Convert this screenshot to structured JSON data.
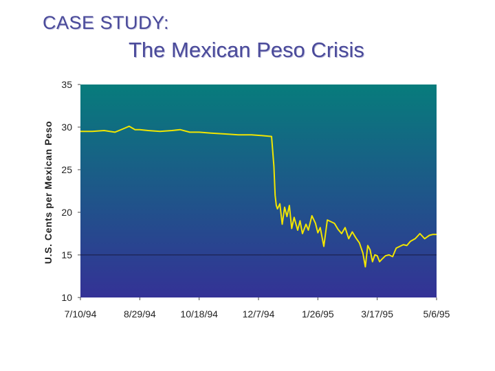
{
  "slide": {
    "title_small": "CASE STUDY:",
    "title_main": "The Mexican Peso Crisis"
  },
  "chart_data": {
    "type": "line",
    "title": "The Mexican Peso Crisis",
    "xlabel": "",
    "ylabel": "U.S. Cents per Mexican Peso",
    "ylim": [
      10,
      35
    ],
    "yticks": [
      "10",
      "15",
      "20",
      "25",
      "30",
      "35"
    ],
    "xlim": [
      "1994-07-10",
      "1995-05-06"
    ],
    "xticks": [
      "7/10/94",
      "8/29/94",
      "10/18/94",
      "12/7/94",
      "1/26/95",
      "3/17/95",
      "5/6/95"
    ],
    "reference_line_y": 15,
    "background": "gradient teal (top) to indigo (bottom)",
    "colors": {
      "line": "#f2e600",
      "bg_top": "#077c7c",
      "bg_bottom": "#343296",
      "ref_line": "#1a1a40"
    },
    "series": [
      {
        "x": [
          "1994-07-10",
          "1994-07-20",
          "1994-07-30",
          "1994-08-08",
          "1994-08-15",
          "1994-08-20",
          "1994-08-25",
          "1994-08-29",
          "1994-09-05",
          "1994-09-15",
          "1994-09-25",
          "1994-10-02",
          "1994-10-10",
          "1994-10-18",
          "1994-10-28",
          "1994-11-08",
          "1994-11-20",
          "1994-12-01",
          "1994-12-10",
          "1994-12-18",
          "1994-12-20",
          "1994-12-21",
          "1994-12-22",
          "1994-12-23",
          "1994-12-25",
          "1994-12-27",
          "1994-12-29",
          "1994-12-31",
          "1995-01-02",
          "1995-01-04",
          "1995-01-06",
          "1995-01-09",
          "1995-01-11",
          "1995-01-13",
          "1995-01-16",
          "1995-01-18",
          "1995-01-21",
          "1995-01-24",
          "1995-01-26",
          "1995-01-28",
          "1995-01-31",
          "1995-02-03",
          "1995-02-06",
          "1995-02-09",
          "1995-02-12",
          "1995-02-15",
          "1995-02-18",
          "1995-02-21",
          "1995-02-24",
          "1995-02-27",
          "1995-03-02",
          "1995-03-05",
          "1995-03-07",
          "1995-03-09",
          "1995-03-11",
          "1995-03-13",
          "1995-03-15",
          "1995-03-17",
          "1995-03-19",
          "1995-03-21",
          "1995-03-24",
          "1995-03-27",
          "1995-03-30",
          "1995-04-02",
          "1995-04-05",
          "1995-04-08",
          "1995-04-11",
          "1995-04-14",
          "1995-04-18",
          "1995-04-22",
          "1995-04-26",
          "1995-04-30",
          "1995-05-03",
          "1995-05-06"
        ],
        "values": [
          29.5,
          29.5,
          29.6,
          29.4,
          29.8,
          30.1,
          29.7,
          29.7,
          29.6,
          29.5,
          29.6,
          29.7,
          29.4,
          29.4,
          29.3,
          29.2,
          29.1,
          29.1,
          29.0,
          28.9,
          25.4,
          22.0,
          20.8,
          20.4,
          21.0,
          18.6,
          20.6,
          19.5,
          20.8,
          18.1,
          19.4,
          17.9,
          19.0,
          17.5,
          18.6,
          17.9,
          19.6,
          18.7,
          17.6,
          18.2,
          16.0,
          19.1,
          18.9,
          18.7,
          18.0,
          17.5,
          18.2,
          16.9,
          17.7,
          17.0,
          16.4,
          15.2,
          13.6,
          16.1,
          15.6,
          14.2,
          15.0,
          14.9,
          14.2,
          14.5,
          14.9,
          15.0,
          14.8,
          15.8,
          16.0,
          16.2,
          16.1,
          16.6,
          16.9,
          17.5,
          16.9,
          17.3,
          17.4,
          17.4
        ]
      }
    ]
  }
}
